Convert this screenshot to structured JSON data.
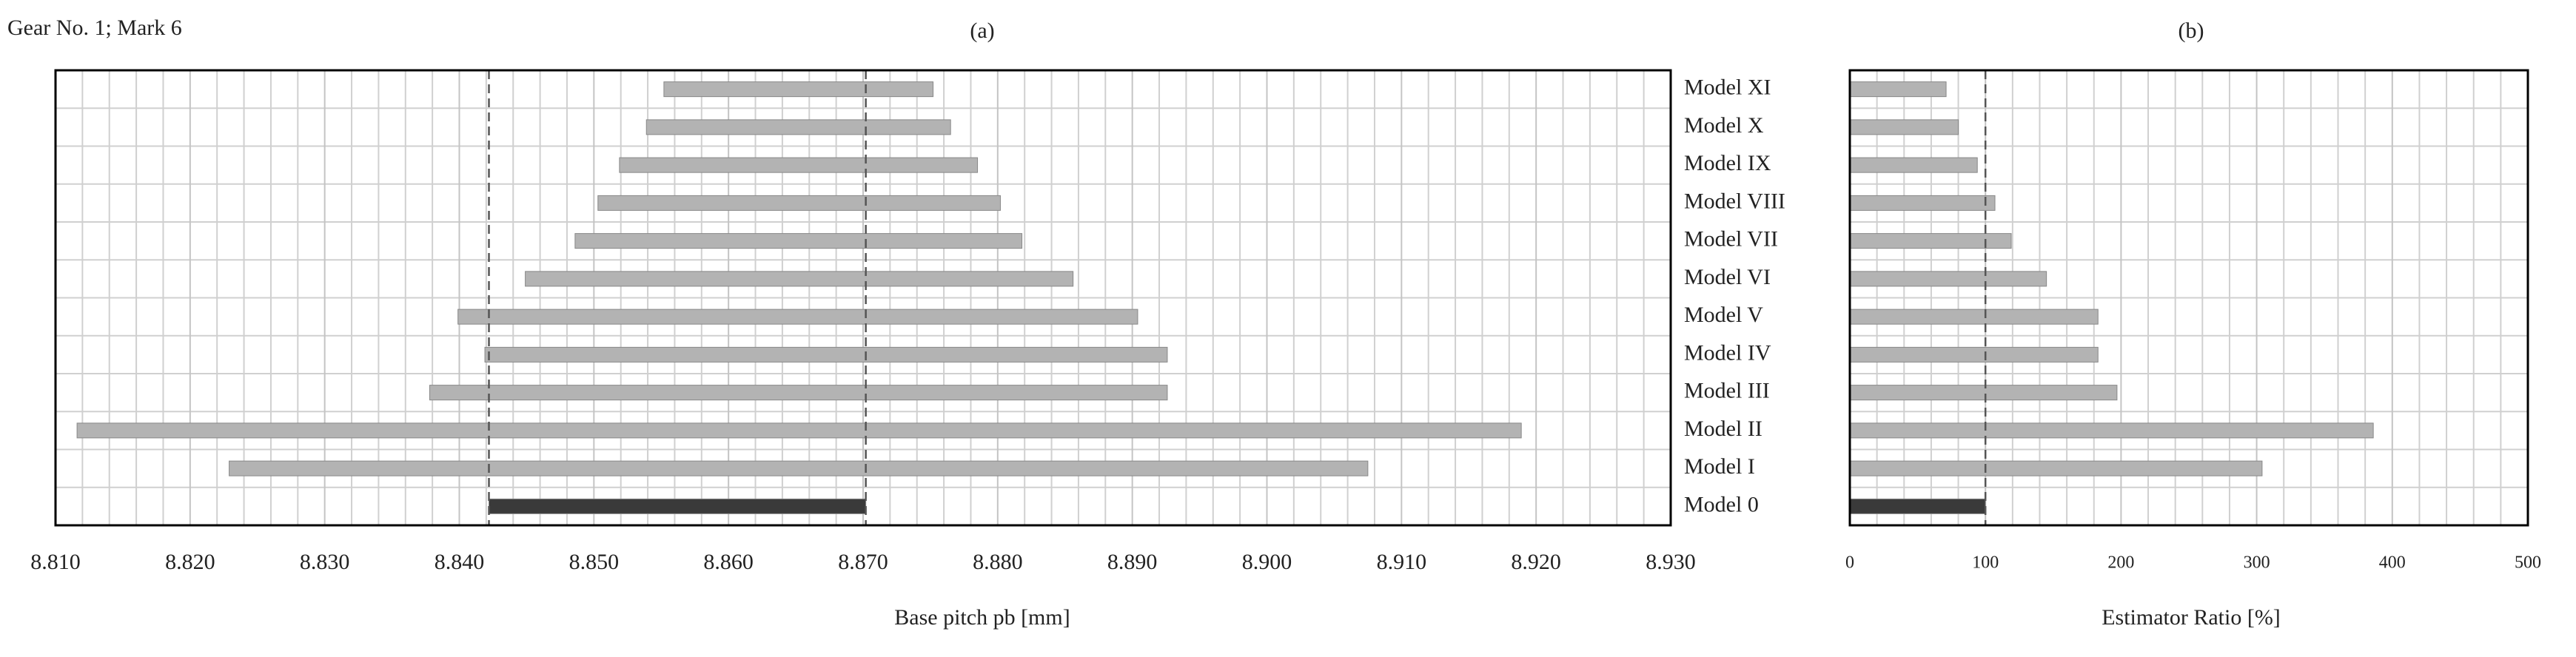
{
  "chart_data": [
    {
      "type": "range_bar",
      "title": "Gear No. 1; Mark 6",
      "panel_label": "(a)",
      "xlabel": "Base pitch pb [mm]",
      "categories": [
        "Model XI",
        "Model X",
        "Model IX",
        "Model VIII",
        "Model VII",
        "Model VI",
        "Model V",
        "Model IV",
        "Model III",
        "Model II",
        "Model I",
        "Model 0"
      ],
      "starts": [
        8.8552,
        8.8539,
        8.8519,
        8.8503,
        8.8486,
        8.8449,
        8.8399,
        8.8419,
        8.8378,
        8.8116,
        8.8229,
        8.8422
      ],
      "ends": [
        8.8752,
        8.8765,
        8.8785,
        8.8802,
        8.8818,
        8.8856,
        8.8904,
        8.8926,
        8.8926,
        8.9189,
        8.9075,
        8.8702
      ],
      "colors": [
        "#b3b3b3",
        "#b3b3b3",
        "#b3b3b3",
        "#b3b3b3",
        "#b3b3b3",
        "#b3b3b3",
        "#b3b3b3",
        "#b3b3b3",
        "#b3b3b3",
        "#b3b3b3",
        "#b3b3b3",
        "#3a3a3a"
      ],
      "xlim": [
        8.81,
        8.93
      ],
      "xticks": [
        {
          "value": 8.81,
          "label": "8.810"
        },
        {
          "value": 8.82,
          "label": "8.820"
        },
        {
          "value": 8.83,
          "label": "8.830"
        },
        {
          "value": 8.84,
          "label": "8.840"
        },
        {
          "value": 8.85,
          "label": "8.850"
        },
        {
          "value": 8.86,
          "label": "8.860"
        },
        {
          "value": 8.87,
          "label": "8.870"
        },
        {
          "value": 8.88,
          "label": "8.880"
        },
        {
          "value": 8.89,
          "label": "8.890"
        },
        {
          "value": 8.9,
          "label": "8.900"
        },
        {
          "value": 8.91,
          "label": "8.910"
        },
        {
          "value": 8.92,
          "label": "8.920"
        },
        {
          "value": 8.93,
          "label": "8.930"
        }
      ],
      "grid": true
    },
    {
      "type": "hbar",
      "panel_label": "(b)",
      "xlabel": "Estimator Ratio [%]",
      "values": [
        71,
        80,
        94,
        107,
        119,
        145,
        183,
        183,
        197,
        386,
        304,
        100
      ],
      "colors": [
        "#b3b3b3",
        "#b3b3b3",
        "#b3b3b3",
        "#b3b3b3",
        "#b3b3b3",
        "#b3b3b3",
        "#b3b3b3",
        "#b3b3b3",
        "#b3b3b3",
        "#b3b3b3",
        "#b3b3b3",
        "#3a3a3a"
      ],
      "xlim": [
        0,
        500
      ],
      "xticks": [
        0,
        100,
        200,
        300,
        400,
        500
      ],
      "grid": true
    }
  ]
}
